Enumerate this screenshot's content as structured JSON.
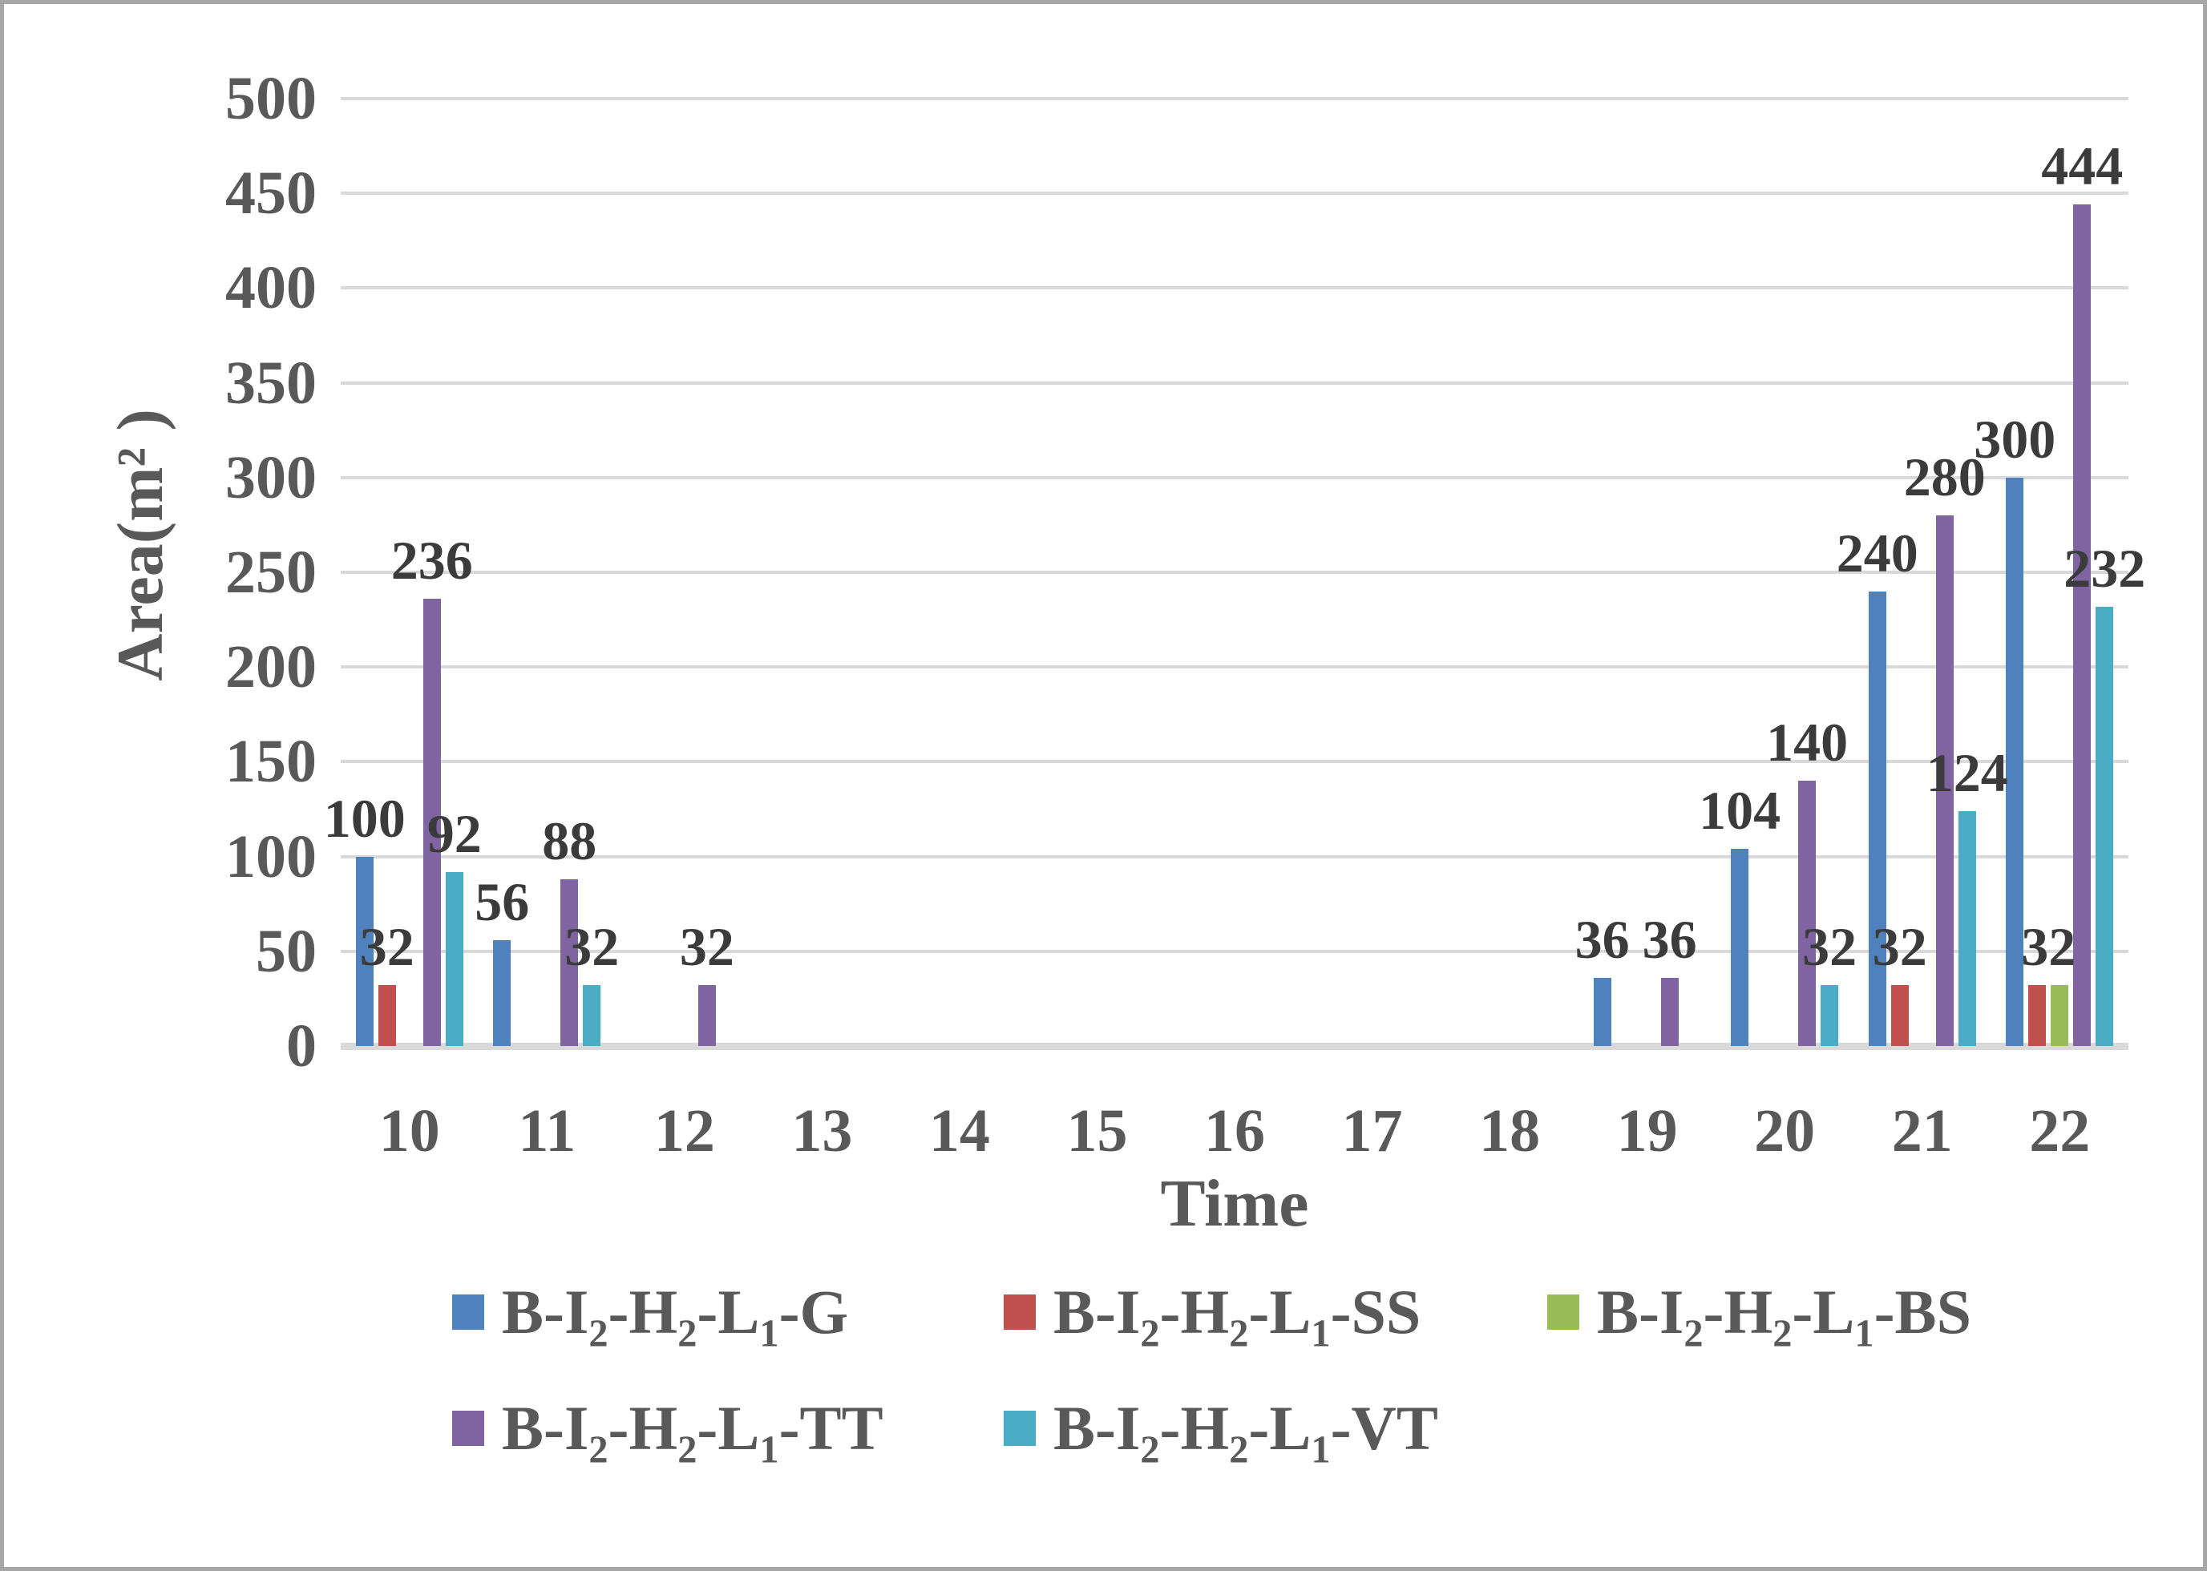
{
  "chart_data": {
    "type": "bar",
    "title": "",
    "xlabel": "Time",
    "ylabel": "Area(m² )",
    "categories": [
      "10",
      "11",
      "12",
      "13",
      "14",
      "15",
      "16",
      "17",
      "18",
      "19",
      "20",
      "21",
      "22"
    ],
    "y_ticks": [
      0,
      50,
      100,
      150,
      200,
      250,
      300,
      350,
      400,
      450,
      500
    ],
    "ylim": [
      0,
      500
    ],
    "grid": true,
    "legend_position": "bottom",
    "series": [
      {
        "name": "B-I₂-H₂-L₁-G",
        "color": "#4F81BD",
        "values": [
          100,
          56,
          null,
          null,
          null,
          null,
          null,
          null,
          null,
          36,
          104,
          240,
          300
        ]
      },
      {
        "name": "B-I₂-H₂-L₁-SS",
        "color": "#C0504D",
        "values": [
          32,
          null,
          null,
          null,
          null,
          null,
          null,
          null,
          null,
          null,
          null,
          32,
          32
        ]
      },
      {
        "name": "B-I₂-H₂-L₁-BS",
        "color": "#9BBB59",
        "values": [
          null,
          null,
          null,
          null,
          null,
          null,
          null,
          null,
          null,
          null,
          null,
          null,
          32
        ]
      },
      {
        "name": "B-I₂-H₂-L₁-TT",
        "color": "#8064A2",
        "values": [
          236,
          88,
          32,
          null,
          null,
          null,
          null,
          null,
          null,
          36,
          140,
          280,
          444
        ]
      },
      {
        "name": "B-I₂-H₂-L₁-VT",
        "color": "#4BACC6",
        "values": [
          92,
          32,
          null,
          null,
          null,
          null,
          null,
          null,
          null,
          null,
          32,
          124,
          232
        ]
      }
    ]
  },
  "colors": {
    "gridline": "#D9D9D9",
    "axis_text": "#595959",
    "data_label": "#3B3B3B",
    "frame_border": "#A6A6A6",
    "background": "#FFFFFF"
  }
}
